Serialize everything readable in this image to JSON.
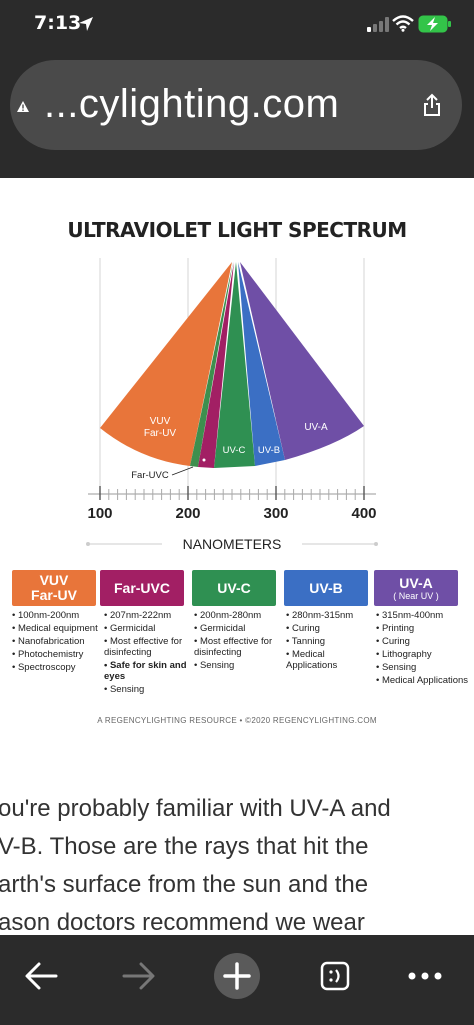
{
  "status_bar": {
    "time": "7:13"
  },
  "browser": {
    "url": "...cylighting.com"
  },
  "figure": {
    "title": "ULTRAVIOLET LIGHT SPECTRUM",
    "axis_label": "NANOMETERS",
    "wedge_labels": {
      "vuv_line1": "VUV",
      "vuv_line2": "Far-UV",
      "faruvc": "Far-UVC",
      "uvc": "UV-C",
      "uvb": "UV-B",
      "uva": "UV-A"
    },
    "colors": {
      "vuv": "#e8753a",
      "faruvc": "#a21f64",
      "uvc": "#2f9052",
      "uvb": "#3b6fc4",
      "uva": "#6f4fa6"
    },
    "chart_data": {
      "type": "diagram",
      "xlabel": "NANOMETERS",
      "xlim": [
        100,
        400
      ],
      "ticks": [
        "100",
        "200",
        "300",
        "400"
      ],
      "bands": [
        {
          "name": "VUV Far-UV",
          "range_nm": [
            100,
            200
          ]
        },
        {
          "name": "Far-UVC",
          "range_nm": [
            207,
            222
          ]
        },
        {
          "name": "UV-C",
          "range_nm": [
            200,
            280
          ]
        },
        {
          "name": "UV-B",
          "range_nm": [
            280,
            315
          ]
        },
        {
          "name": "UV-A",
          "range_nm": [
            315,
            400
          ]
        }
      ]
    },
    "categories": [
      {
        "name": "VUV",
        "sub": "Far-UV",
        "items": [
          {
            "text": "100nm-200nm"
          },
          {
            "text": "Medical equipment"
          },
          {
            "text": "Nanofabrication"
          },
          {
            "text": "Photochemistry"
          },
          {
            "text": "Spectroscopy"
          }
        ]
      },
      {
        "name": "Far-UVC",
        "sub": "",
        "items": [
          {
            "text": "207nm-222nm"
          },
          {
            "text": "Germicidal"
          },
          {
            "text": "Most effective for disinfecting"
          },
          {
            "text": "Safe for skin and eyes",
            "bold": true
          },
          {
            "text": "Sensing"
          }
        ]
      },
      {
        "name": "UV-C",
        "sub": "",
        "items": [
          {
            "text": "200nm-280nm"
          },
          {
            "text": "Germicidal"
          },
          {
            "text": "Most effective for disinfecting"
          },
          {
            "text": "Sensing"
          }
        ]
      },
      {
        "name": "UV-B",
        "sub": "",
        "items": [
          {
            "text": "280nm-315nm"
          },
          {
            "text": "Curing"
          },
          {
            "text": "Tanning"
          },
          {
            "text": "Medical Applications"
          }
        ]
      },
      {
        "name": "UV-A",
        "sub": "( Near UV )",
        "items": [
          {
            "text": "315nm-400nm"
          },
          {
            "text": "Printing"
          },
          {
            "text": "Curing"
          },
          {
            "text": "Lithography"
          },
          {
            "text": "Sensing"
          },
          {
            "text": "Medical Applications"
          }
        ]
      }
    ],
    "credit": "A REGENCYLIGHTING RESOURCE • ©2020 REGENCYLIGHTING.COM"
  },
  "article_lines": [
    "ou're probably familiar with UV-A and",
    "V-B. Those are the rays that hit the",
    "arth's surface from the sun and the",
    "ason doctors recommend we wear"
  ]
}
